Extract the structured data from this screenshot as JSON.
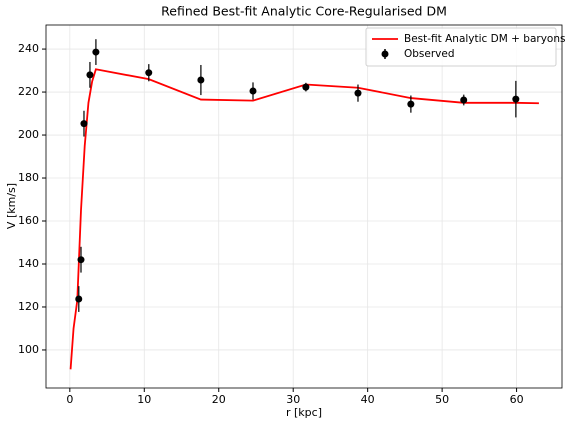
{
  "chart_data": {
    "type": "line",
    "title": "Refined Best-fit Analytic Core-Regularised DM",
    "xlabel": "r [kpc]",
    "ylabel": "V [km/s]",
    "xlim": [
      -3.2,
      66.1
    ],
    "ylim": [
      82.3,
      251.2
    ],
    "xticks": [
      0,
      10,
      20,
      30,
      40,
      50,
      60
    ],
    "yticks": [
      100,
      120,
      140,
      160,
      180,
      200,
      220,
      240
    ],
    "grid": true,
    "legend": "upper right",
    "series": [
      {
        "name": "Best-fit Analytic DM + baryons",
        "color": "#ff0000",
        "x": [
          0.1,
          0.5,
          1.0,
          1.5,
          2.0,
          2.5,
          3.0,
          3.5,
          10.6,
          17.6,
          24.6,
          31.7,
          38.7,
          45.8,
          52.9,
          59.9,
          63.0
        ],
        "values": [
          91,
          110,
          123,
          165,
          195,
          215,
          225,
          230.6,
          226,
          216.5,
          216,
          223.5,
          222,
          217.2,
          215,
          215,
          214.8
        ]
      },
      {
        "name": "Observed",
        "color": "#000000",
        "errorbar": true,
        "x": [
          1.2,
          1.5,
          1.9,
          2.7,
          3.5,
          10.6,
          17.6,
          24.6,
          31.7,
          38.7,
          45.8,
          52.9,
          59.9
        ],
        "values": [
          123.7,
          142,
          205.3,
          228,
          238.6,
          229,
          225.6,
          220.5,
          222.3,
          219.5,
          214.4,
          216.3,
          216.7
        ],
        "errors": [
          6,
          6,
          6,
          6,
          6,
          4,
          7,
          4,
          2,
          4,
          4,
          2.5,
          8.5
        ]
      }
    ]
  }
}
